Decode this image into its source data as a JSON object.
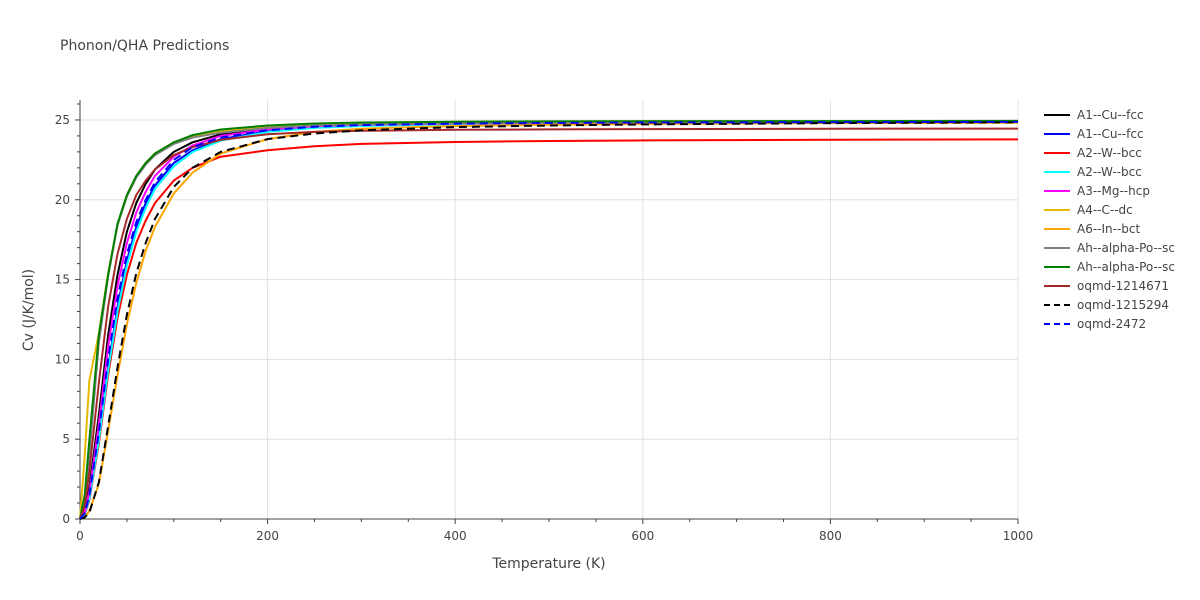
{
  "chart_data": {
    "type": "line",
    "title": "Phonon/QHA Predictions",
    "xlabel": "Temperature (K)",
    "ylabel": "Cv (J/K/mol)",
    "xlim": [
      0,
      1000
    ],
    "ylim": [
      0,
      26.25
    ],
    "xticks": [
      0,
      200,
      400,
      600,
      800,
      1000
    ],
    "yticks": [
      0,
      5,
      10,
      15,
      20,
      25
    ],
    "grid": true,
    "legend_position": "right",
    "series": [
      {
        "name": "A1--Cu--fcc",
        "color": "#000000",
        "dash": "solid",
        "x": [
          0,
          5,
          10,
          20,
          30,
          40,
          50,
          60,
          70,
          80,
          100,
          120,
          150,
          200,
          250,
          300,
          400,
          500,
          600,
          800,
          1000
        ],
        "y": [
          0,
          0.5,
          2.0,
          6.5,
          11.5,
          15.3,
          18.0,
          19.8,
          21.0,
          21.9,
          23.0,
          23.6,
          24.1,
          24.5,
          24.65,
          24.72,
          24.8,
          24.83,
          24.85,
          24.87,
          24.88
        ]
      },
      {
        "name": "A1--Cu--fcc",
        "color": "#0000ff",
        "dash": "solid",
        "x": [
          0,
          5,
          10,
          20,
          30,
          40,
          50,
          60,
          70,
          80,
          100,
          120,
          150,
          200,
          250,
          300,
          400,
          500,
          600,
          800,
          1000
        ],
        "y": [
          0,
          0.3,
          1.3,
          5.0,
          9.5,
          13.3,
          16.2,
          18.3,
          19.8,
          20.9,
          22.3,
          23.1,
          23.8,
          24.3,
          24.55,
          24.65,
          24.75,
          24.8,
          24.83,
          24.86,
          24.88
        ]
      },
      {
        "name": "A2--W--bcc",
        "color": "#ff0000",
        "dash": "solid",
        "x": [
          0,
          5,
          10,
          20,
          30,
          40,
          50,
          60,
          70,
          80,
          100,
          120,
          150,
          200,
          250,
          300,
          400,
          500,
          600,
          800,
          1000
        ],
        "y": [
          0,
          0.25,
          1.2,
          4.7,
          9.0,
          12.6,
          15.3,
          17.3,
          18.7,
          19.8,
          21.2,
          22.0,
          22.7,
          23.1,
          23.35,
          23.5,
          23.62,
          23.68,
          23.72,
          23.76,
          23.78
        ]
      },
      {
        "name": "A2--W--bcc",
        "color": "#00ffff",
        "dash": "solid",
        "x": [
          0,
          5,
          10,
          20,
          30,
          40,
          50,
          60,
          70,
          80,
          100,
          120,
          150,
          200,
          250,
          300,
          400,
          500,
          600,
          800,
          1000
        ],
        "y": [
          0,
          0.3,
          1.3,
          4.9,
          9.3,
          13.0,
          15.9,
          18.0,
          19.5,
          20.7,
          22.1,
          23.0,
          23.7,
          24.25,
          24.5,
          24.62,
          24.74,
          24.8,
          24.83,
          24.86,
          24.88
        ]
      },
      {
        "name": "A3--Mg--hcp",
        "color": "#ff00ff",
        "dash": "solid",
        "x": [
          0,
          5,
          10,
          20,
          30,
          40,
          50,
          60,
          70,
          80,
          100,
          120,
          150,
          200,
          250,
          300,
          400,
          500,
          600,
          800,
          1000
        ],
        "y": [
          0,
          0.4,
          1.7,
          5.9,
          10.8,
          14.6,
          17.3,
          19.2,
          20.5,
          21.5,
          22.7,
          23.4,
          24.0,
          24.4,
          24.6,
          24.7,
          24.78,
          24.82,
          24.85,
          24.87,
          24.88
        ]
      },
      {
        "name": "A4--C--dc",
        "color": "#e6b800",
        "dash": "solid",
        "x": [
          0,
          5,
          10,
          20,
          30,
          40,
          50,
          60,
          70,
          80,
          100,
          120,
          150,
          200,
          250,
          300,
          400,
          500,
          600,
          800,
          1000
        ],
        "y": [
          0,
          4.0,
          8.7,
          11.6,
          15.4,
          18.4,
          20.3,
          21.5,
          22.3,
          22.9,
          23.6,
          24.0,
          24.3,
          24.6,
          24.75,
          24.82,
          24.88,
          24.9,
          24.92,
          24.93,
          24.93
        ]
      },
      {
        "name": "A6--In--bct",
        "color": "#ffa500",
        "dash": "solid",
        "x": [
          0,
          5,
          10,
          20,
          30,
          40,
          50,
          60,
          70,
          80,
          100,
          120,
          150,
          200,
          250,
          300,
          400,
          500,
          600,
          800,
          1000
        ],
        "y": [
          0,
          0.1,
          0.5,
          2.2,
          5.5,
          9.0,
          12.2,
          14.8,
          16.8,
          18.3,
          20.4,
          21.7,
          22.9,
          23.8,
          24.25,
          24.45,
          24.62,
          24.7,
          24.75,
          24.8,
          24.83
        ]
      },
      {
        "name": "Ah--alpha-Po--sc",
        "color": "#808080",
        "dash": "solid",
        "x": [
          0,
          5,
          10,
          20,
          30,
          40,
          50,
          60,
          70,
          80,
          100,
          120,
          150,
          200,
          250,
          300,
          400,
          500,
          600,
          800,
          1000
        ],
        "y": [
          0,
          1.0,
          4.0,
          11.0,
          15.2,
          18.4,
          20.2,
          21.4,
          22.2,
          22.8,
          23.5,
          23.9,
          24.2,
          24.5,
          24.65,
          24.72,
          24.8,
          24.84,
          24.86,
          24.88,
          24.9
        ]
      },
      {
        "name": "Ah--alpha-Po--sc",
        "color": "#008000",
        "dash": "solid",
        "x": [
          0,
          5,
          10,
          20,
          30,
          40,
          50,
          60,
          70,
          80,
          100,
          120,
          150,
          200,
          250,
          300,
          400,
          500,
          600,
          800,
          1000
        ],
        "y": [
          0,
          1.5,
          5.0,
          11.5,
          15.3,
          18.5,
          20.3,
          21.5,
          22.3,
          22.9,
          23.6,
          24.05,
          24.4,
          24.65,
          24.78,
          24.84,
          24.89,
          24.91,
          24.92,
          24.93,
          24.94
        ]
      },
      {
        "name": "oqmd-1214671",
        "color": "#a52a2a",
        "dash": "solid",
        "x": [
          0,
          5,
          10,
          20,
          30,
          40,
          50,
          60,
          70,
          80,
          100,
          120,
          150,
          200,
          250,
          300,
          400,
          500,
          600,
          800,
          1000
        ],
        "y": [
          0,
          0.8,
          3.0,
          8.5,
          13.3,
          16.6,
          18.8,
          20.3,
          21.2,
          21.9,
          22.8,
          23.3,
          23.75,
          24.1,
          24.25,
          24.32,
          24.38,
          24.41,
          24.43,
          24.45,
          24.46
        ]
      },
      {
        "name": "oqmd-1215294",
        "color": "#000000",
        "dash": "dash",
        "x": [
          0,
          5,
          10,
          20,
          30,
          40,
          50,
          60,
          70,
          80,
          100,
          120,
          150,
          200,
          250,
          300,
          400,
          500,
          600,
          800,
          1000
        ],
        "y": [
          0,
          0.1,
          0.4,
          2.3,
          5.8,
          9.5,
          12.8,
          15.4,
          17.3,
          18.8,
          20.8,
          22.0,
          23.0,
          23.8,
          24.15,
          24.35,
          24.55,
          24.65,
          24.72,
          24.8,
          24.85
        ]
      },
      {
        "name": "oqmd-2472",
        "color": "#0000ff",
        "dash": "dash",
        "x": [
          0,
          5,
          10,
          20,
          30,
          40,
          50,
          60,
          70,
          80,
          100,
          120,
          150,
          200,
          250,
          300,
          400,
          500,
          600,
          800,
          1000
        ],
        "y": [
          0,
          0.35,
          1.5,
          5.4,
          10.0,
          13.8,
          16.6,
          18.6,
          20.0,
          21.1,
          22.5,
          23.3,
          23.9,
          24.35,
          24.58,
          24.68,
          24.77,
          24.81,
          24.84,
          24.86,
          24.88
        ]
      }
    ]
  }
}
